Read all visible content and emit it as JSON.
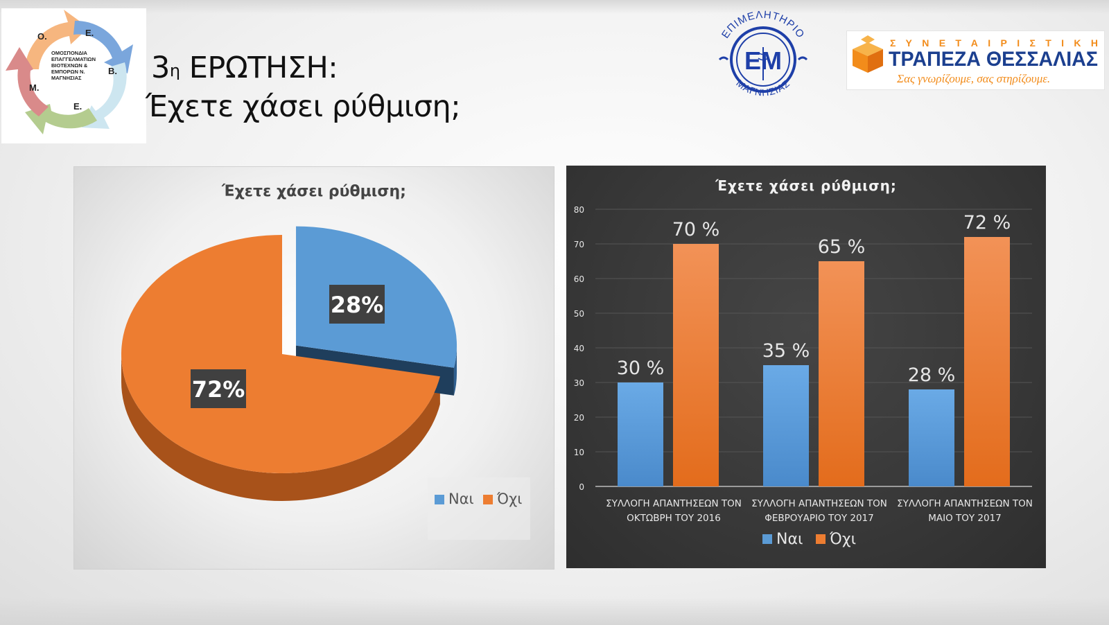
{
  "slide": {
    "title_prefix": "3",
    "title_sup": "η",
    "title_rest": " ΕΡΩΤΗΣΗ:",
    "subtitle": "Έχετε χάσει ρύθμιση;"
  },
  "logos": {
    "association": {
      "letters": [
        "Ο.",
        "Ε.",
        "Β.",
        "Ε.",
        "Μ."
      ],
      "text_lines": [
        "ΟΜΟΣΠΟΝΔΙΑ",
        "ΕΠΑΓΓΕΛΜΑΤΙΩΝ",
        "ΒΙΟΤΕΧΝΩΝ &",
        "ΕΜΠΟΡΩΝ Ν.",
        "ΜΑΓΝΗΣΙΑΣ"
      ],
      "colors": [
        "#f6b67f",
        "#7aa6dc",
        "#cde6f0",
        "#b4cc8f",
        "#d98a8a"
      ]
    },
    "chamber": {
      "top_text": "ΕΠΙΜΕΛΗΤΗΡΙΟ",
      "center": "ΕΜ",
      "bottom_text": "ΜΑΓΝΗΣΙΑΣ",
      "color": "#1e3fa8"
    },
    "bank": {
      "line1": "Σ Υ Ν Ε Τ Α Ι Ρ Ι Σ Τ Ι Κ Η",
      "line2": "ΤΡΑΠΕΖΑ ΘΕΣΣΑΛΙΑΣ",
      "slogan": "Σας γνωρίζουμε, σας στηρίζουμε.",
      "blue": "#1b3f8f",
      "orange": "#f28c1b"
    }
  },
  "colors": {
    "yes": "#5b9bd5",
    "no": "#ed7d31"
  },
  "chart_data": [
    {
      "type": "pie",
      "title": "Έχετε χάσει ρύθμιση;",
      "categories": [
        "Ναι",
        "Όχι"
      ],
      "values": [
        28,
        72
      ],
      "labels": [
        "28%",
        "72%"
      ],
      "legend": [
        "Ναι",
        "Όχι"
      ],
      "legend_position": "bottom-right"
    },
    {
      "type": "bar",
      "title": "Έχετε χάσει ρύθμιση;",
      "categories": [
        [
          "ΣΥΛΛΟΓΗ ΑΠΑΝΤΗΣΕΩΝ ΤΟΝ",
          "ΟΚΤΩΒΡΗ ΤΟΥ 2016"
        ],
        [
          "ΣΥΛΛΟΓΗ ΑΠΑΝΤΗΣΕΩΝ ΤΟΝ",
          "ΦΕΒΡΟΥΑΡΙΟ ΤΟΥ 2017"
        ],
        [
          "ΣΥΛΛΟΓΗ ΑΠΑΝΤΗΣΕΩΝ ΤΟΝ",
          "ΜΑΙΟ ΤΟΥ 2017"
        ]
      ],
      "series": [
        {
          "name": "Ναι",
          "values": [
            30,
            35,
            28
          ],
          "labels": [
            "30 %",
            "35 %",
            "28 %"
          ]
        },
        {
          "name": "Όχι",
          "values": [
            70,
            65,
            72
          ],
          "labels": [
            "70 %",
            "65 %",
            "72 %"
          ]
        }
      ],
      "yticks": [
        0,
        10,
        20,
        30,
        40,
        50,
        60,
        70,
        80
      ],
      "ylim": [
        0,
        80
      ],
      "grid": true,
      "legend": [
        "Ναι",
        "Όχι"
      ],
      "legend_position": "bottom"
    }
  ]
}
